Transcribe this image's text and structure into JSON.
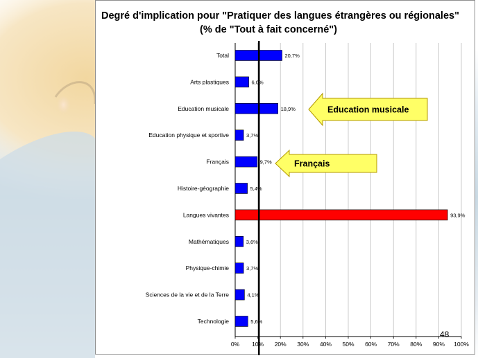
{
  "chart_data": {
    "type": "bar",
    "orientation": "horizontal",
    "title": "Degré d'implication pour  \"Pratiquer des langues étrangères ou régionales\"",
    "subtitle": "(% de \"Tout à fait concerné\")",
    "categories": [
      "Total",
      "Arts plastiques",
      "Education musicale",
      "Education physique et sportive",
      "Français",
      "Histoire-géographie",
      "Langues vivantes",
      "Mathématiques",
      "Physique-chimie",
      "Sciences de la vie et de la Terre",
      "Technologie"
    ],
    "values": [
      20.7,
      6.0,
      18.9,
      3.7,
      9.7,
      5.4,
      93.9,
      3.6,
      3.7,
      4.1,
      5.6
    ],
    "value_labels": [
      "20,7%",
      "6,0%",
      "18,9%",
      "3,7%",
      "9,7%",
      "5,4%",
      "93,9%",
      "3,6%",
      "3,7%",
      "4,1%",
      "5,6%"
    ],
    "bar_colors": [
      "#0000ff",
      "#0000ff",
      "#0000ff",
      "#0000ff",
      "#0000ff",
      "#0000ff",
      "#ff0000",
      "#0000ff",
      "#0000ff",
      "#0000ff",
      "#0000ff"
    ],
    "xlim": [
      0,
      100
    ],
    "x_ticks": [
      0,
      10,
      20,
      30,
      40,
      50,
      60,
      70,
      80,
      90,
      100
    ],
    "x_tick_labels": [
      "0%",
      "10%",
      "20%",
      "30%",
      "40%",
      "50%",
      "60%",
      "70%",
      "80%",
      "90%",
      "100%"
    ],
    "grid": true,
    "reference_line": 10.5,
    "annotations": [
      {
        "text": "Education musicale",
        "points_to": "Education musicale"
      },
      {
        "text": "Français",
        "points_to": "Français"
      }
    ]
  },
  "slide": {
    "page_number": "48"
  },
  "colors": {
    "callout_fill": "#ffff66",
    "callout_stroke": "#b39a00",
    "grid": "#c0c0c0",
    "reference_line": "#000000"
  }
}
